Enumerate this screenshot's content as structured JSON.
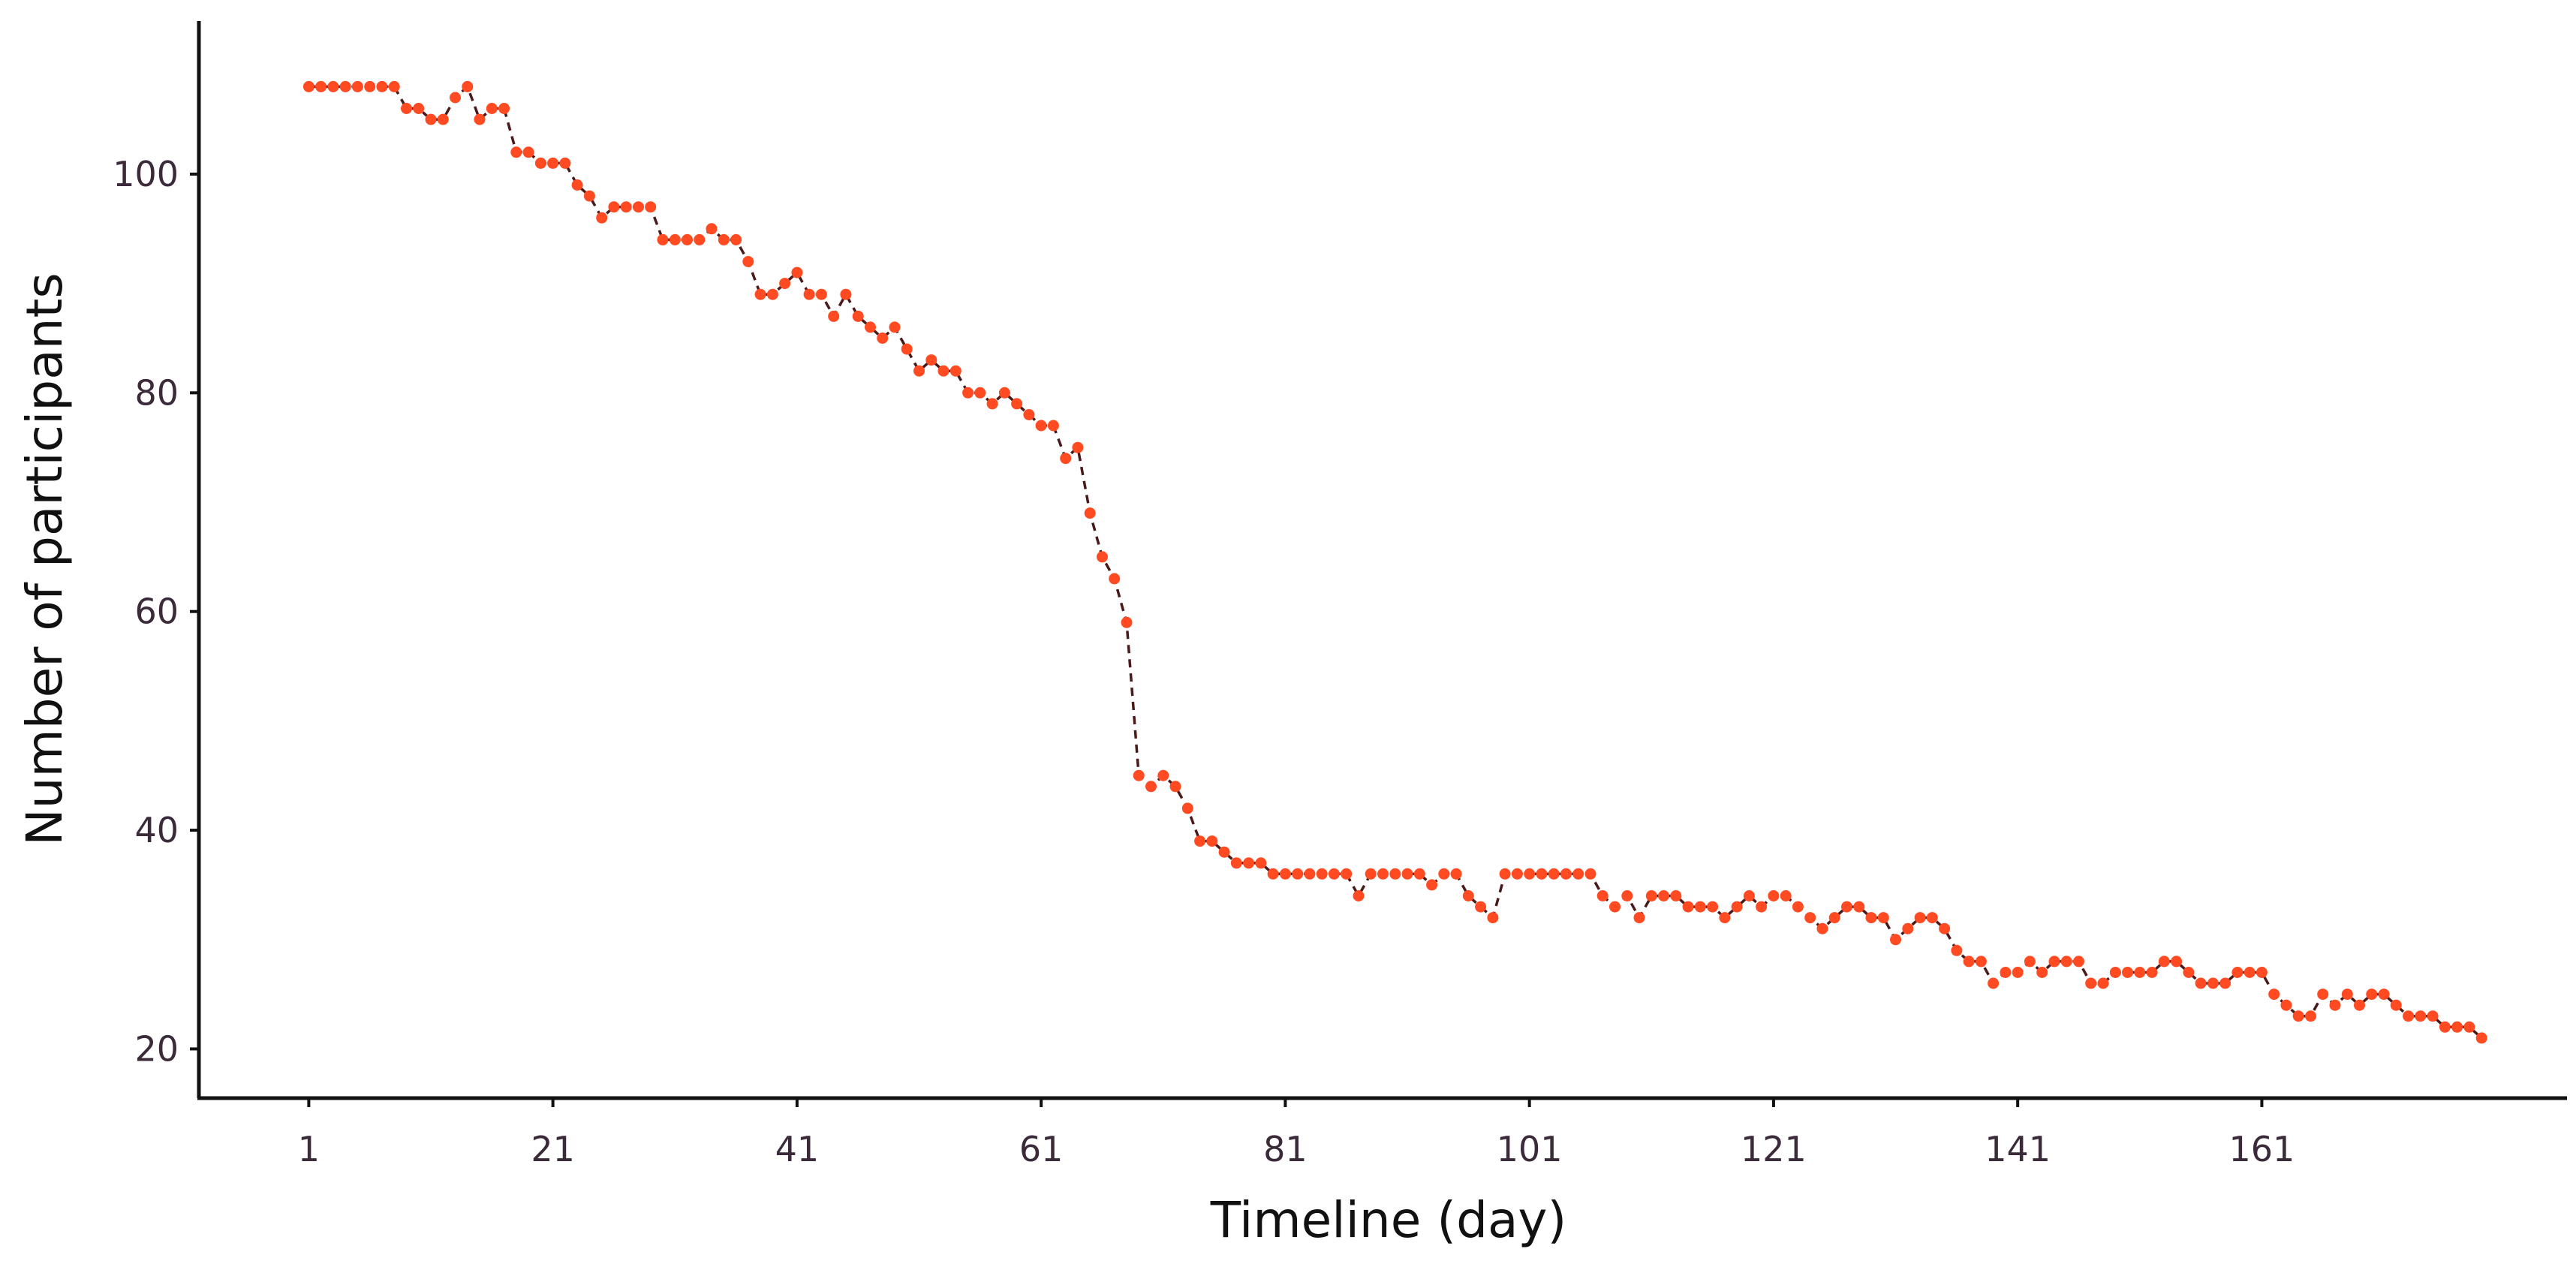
{
  "chart_data": {
    "type": "line",
    "title": "",
    "xlabel": "Timeline (day)",
    "ylabel": "Number of participants",
    "xlim": [
      -8,
      186
    ],
    "ylim": [
      15.5,
      114
    ],
    "x_ticks": [
      1,
      21,
      41,
      61,
      81,
      101,
      121,
      141,
      161
    ],
    "y_ticks": [
      20,
      40,
      60,
      80,
      100
    ],
    "grid": false,
    "legend": "none",
    "colors": {
      "points": "#ff4a22",
      "line": "#4a1a1a",
      "axis": "#111111"
    },
    "series": [
      {
        "x": [
          1,
          2,
          3,
          4,
          5,
          6,
          7,
          8,
          9,
          10,
          11,
          12,
          13,
          14,
          15,
          16,
          17,
          18,
          19,
          20,
          21,
          22,
          23,
          24,
          25,
          26,
          27,
          28,
          29,
          30,
          31,
          32,
          33,
          34,
          35,
          36,
          37,
          38,
          39,
          40,
          41,
          42,
          43,
          44,
          45,
          46,
          47,
          48,
          49,
          50,
          51,
          52,
          53,
          54,
          55,
          56,
          57,
          58,
          59,
          60,
          61,
          62,
          63,
          64,
          65,
          66,
          67,
          68,
          69,
          70,
          71,
          72,
          73,
          74,
          75,
          76,
          77,
          78,
          79,
          80,
          81,
          82,
          83,
          84,
          85,
          86,
          87,
          88,
          89,
          90,
          91,
          92,
          93,
          94,
          95,
          96,
          97,
          98,
          99,
          100,
          101,
          102,
          103,
          104,
          105,
          106,
          107,
          108,
          109,
          110,
          111,
          112,
          113,
          114,
          115,
          116,
          117,
          118,
          119,
          120,
          121,
          122,
          123,
          124,
          125,
          126,
          127,
          128,
          129,
          130,
          131,
          132,
          133,
          134,
          135,
          136,
          137,
          138,
          139,
          140,
          141,
          142,
          143,
          144,
          145,
          146,
          147,
          148,
          149,
          150,
          151,
          152,
          153,
          154,
          155,
          156,
          157,
          158,
          159,
          160,
          161,
          162,
          163,
          164,
          165,
          166,
          167,
          168,
          169,
          170,
          171,
          172,
          173,
          174,
          175,
          176,
          177,
          178,
          179
        ],
        "values": [
          108,
          108,
          108,
          108,
          108,
          108,
          108,
          108,
          106,
          106,
          105,
          105,
          107,
          108,
          105,
          106,
          106,
          102,
          102,
          101,
          101,
          101,
          99,
          98,
          96,
          97,
          97,
          97,
          97,
          94,
          94,
          94,
          94,
          95,
          94,
          94,
          92,
          89,
          89,
          90,
          91,
          89,
          89,
          87,
          89,
          87,
          86,
          85,
          86,
          84,
          82,
          83,
          82,
          82,
          80,
          80,
          79,
          80,
          79,
          78,
          77,
          77,
          74,
          75,
          69,
          65,
          63,
          59,
          45,
          44,
          45,
          44,
          42,
          39,
          39,
          38,
          37,
          37,
          37,
          36,
          36,
          36,
          36,
          36,
          36,
          36,
          34,
          36,
          36,
          36,
          36,
          36,
          35,
          36,
          36,
          34,
          33,
          32,
          36,
          36,
          36,
          36,
          36,
          36,
          36,
          36,
          34,
          33,
          34,
          32,
          34,
          34,
          34,
          33,
          33,
          33,
          32,
          33,
          34,
          33,
          34,
          34,
          33,
          32,
          31,
          32,
          33,
          33,
          32,
          32,
          30,
          31,
          32,
          32,
          31,
          29,
          28,
          28,
          26,
          27,
          27,
          28,
          27,
          28,
          28,
          28,
          26,
          26,
          27,
          27,
          27,
          27,
          28,
          28,
          27,
          26,
          26,
          26,
          27,
          27,
          27,
          25,
          24,
          23,
          23,
          25,
          24,
          25,
          24,
          25,
          25,
          24,
          23,
          23,
          23,
          22,
          22,
          22,
          21
        ]
      }
    ]
  }
}
